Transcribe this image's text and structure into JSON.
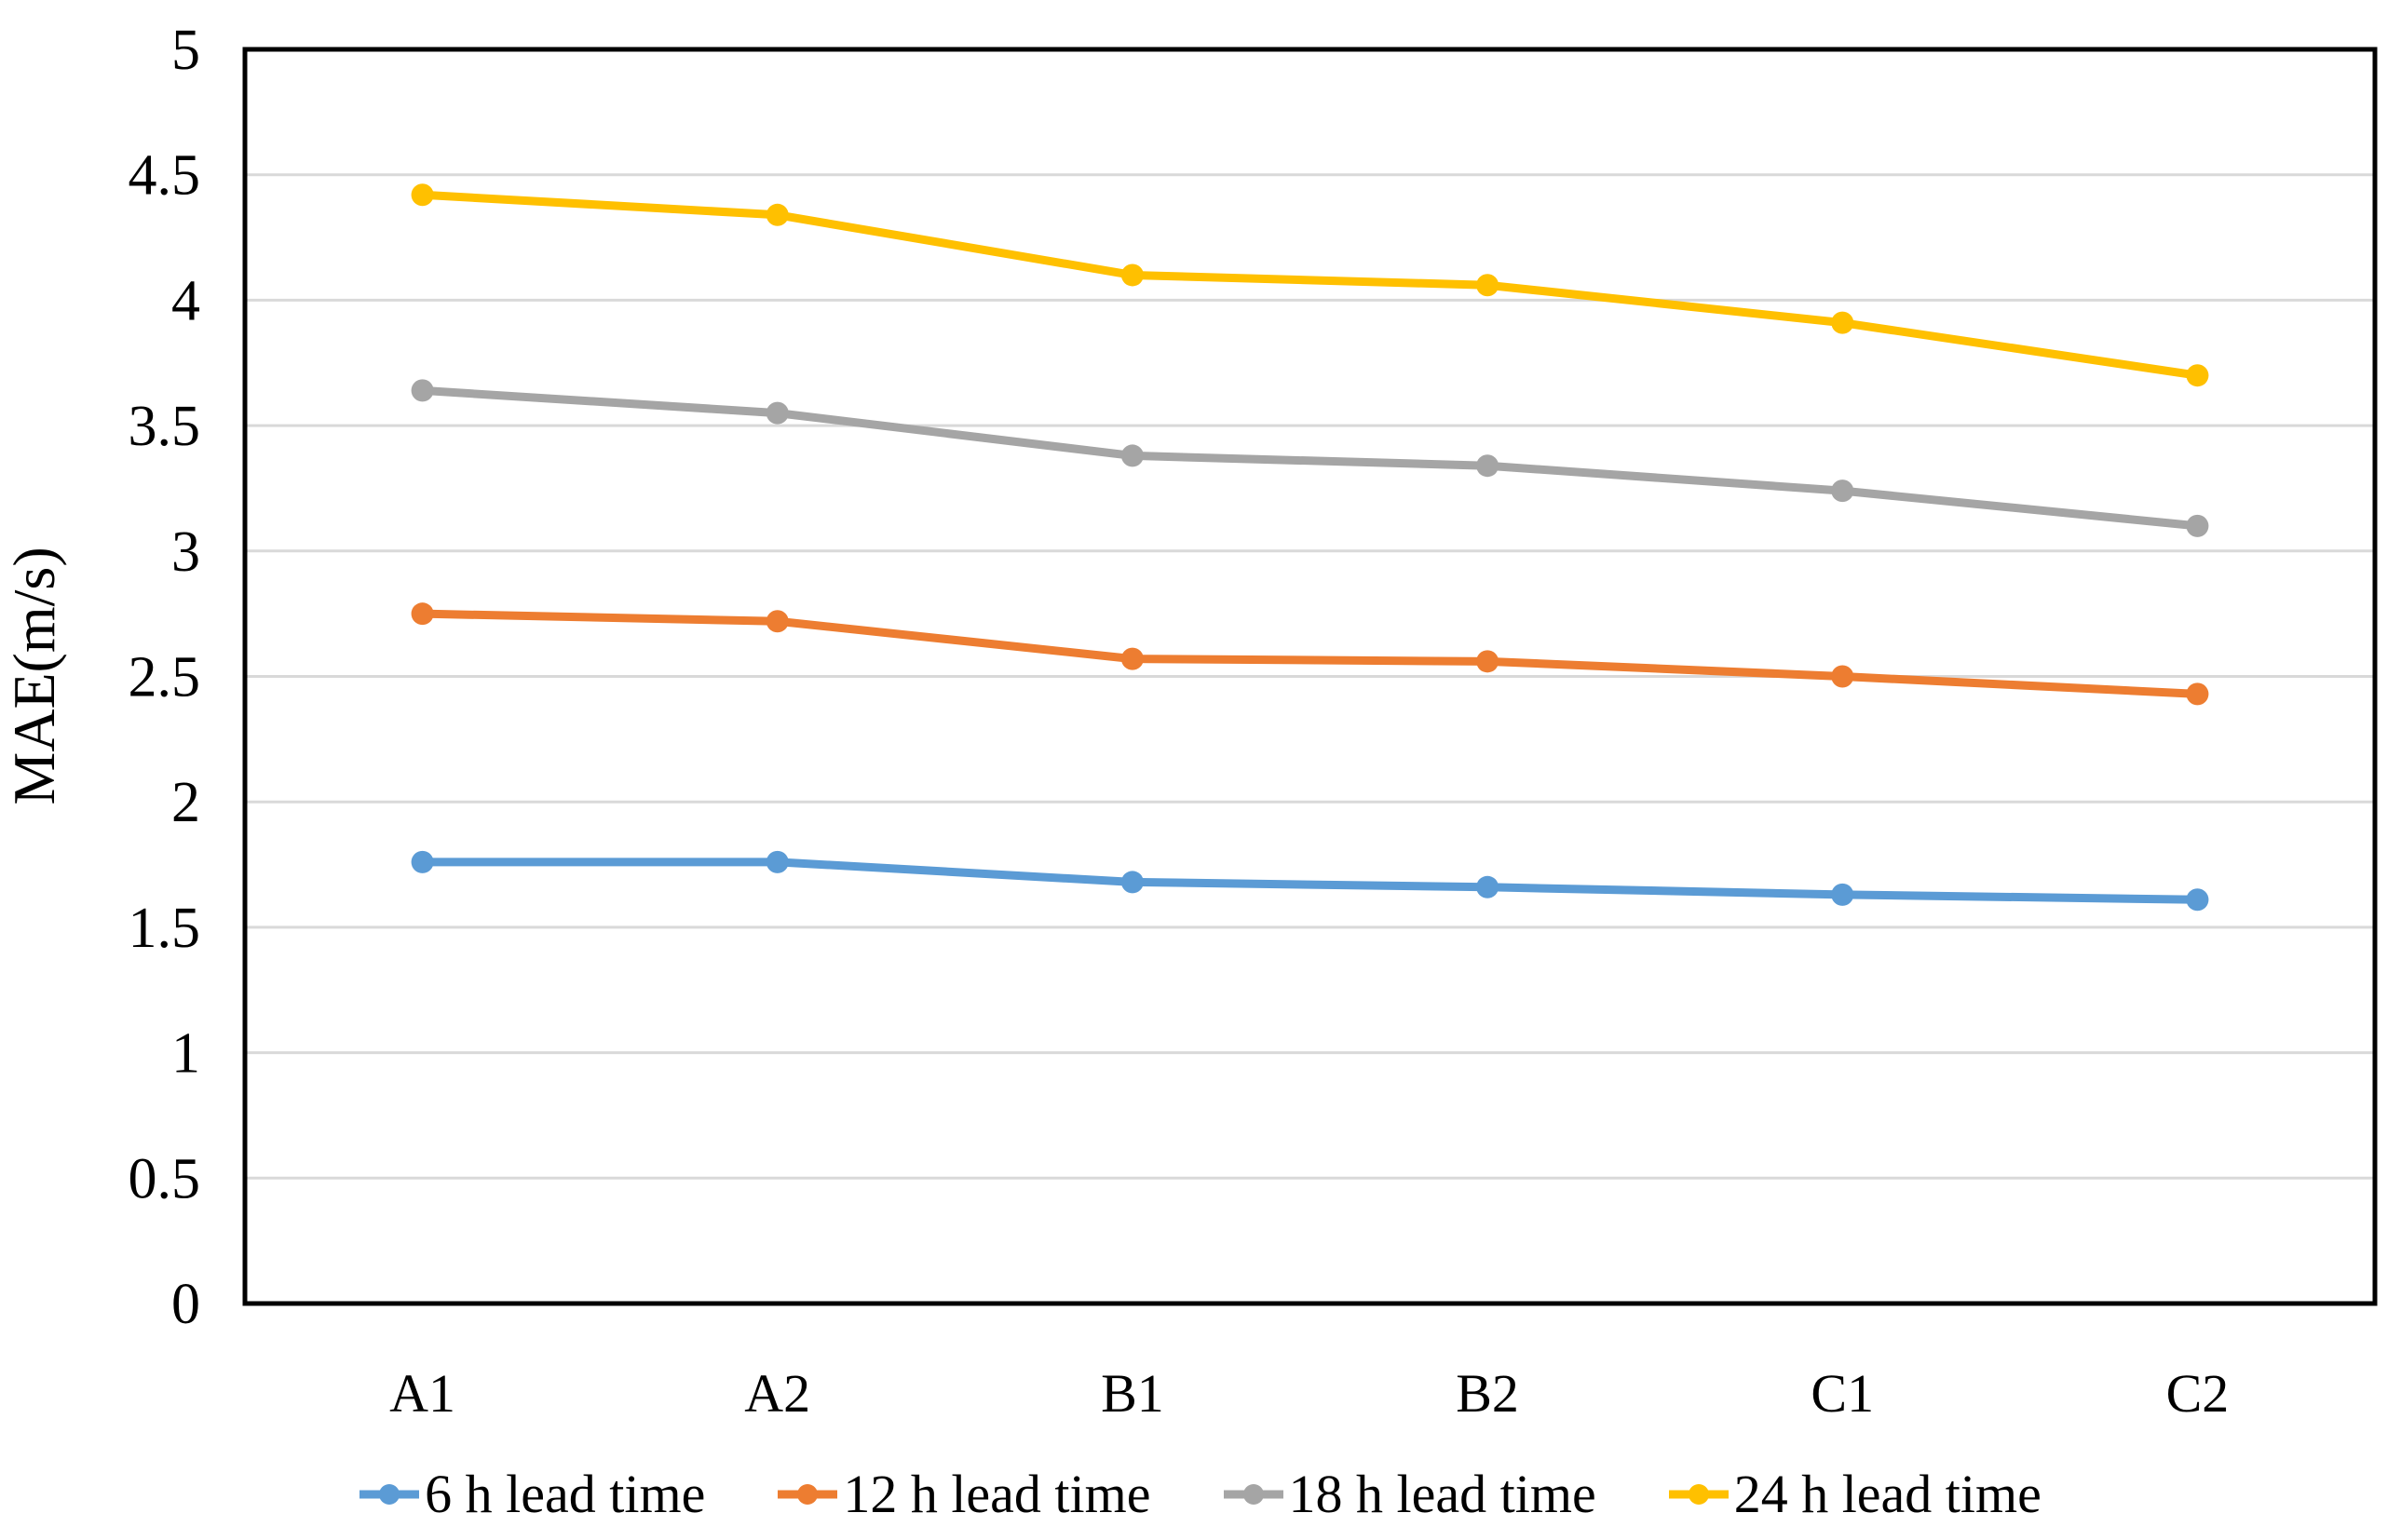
{
  "chart_data": {
    "type": "line",
    "title": "",
    "xlabel": "",
    "ylabel": "MAE(m/s)",
    "ylim": [
      0,
      5
    ],
    "ytick_step": 0.5,
    "yticks": [
      "5",
      "4.5",
      "4",
      "3.5",
      "3",
      "2.5",
      "2",
      "1.5",
      "1",
      "0.5",
      "0"
    ],
    "categories": [
      "A1",
      "A2",
      "B1",
      "B2",
      "C1",
      "C2"
    ],
    "series": [
      {
        "name": "6 h lead time",
        "color": "#5B9BD5",
        "values": [
          1.76,
          1.76,
          1.68,
          1.66,
          1.63,
          1.61
        ]
      },
      {
        "name": "12 h lead time",
        "color": "#ED7D31",
        "values": [
          2.75,
          2.72,
          2.57,
          2.56,
          2.5,
          2.43
        ]
      },
      {
        "name": "18 h lead time",
        "color": "#A5A5A5",
        "values": [
          3.64,
          3.55,
          3.38,
          3.34,
          3.24,
          3.1
        ]
      },
      {
        "name": "24 h lead time",
        "color": "#FFC000",
        "values": [
          4.42,
          4.34,
          4.1,
          4.06,
          3.91,
          3.7
        ]
      }
    ],
    "legend_position": "bottom",
    "grid": true,
    "gridline_color": "#D9D9D9",
    "axis_color": "#000000",
    "background": "#FFFFFF"
  }
}
